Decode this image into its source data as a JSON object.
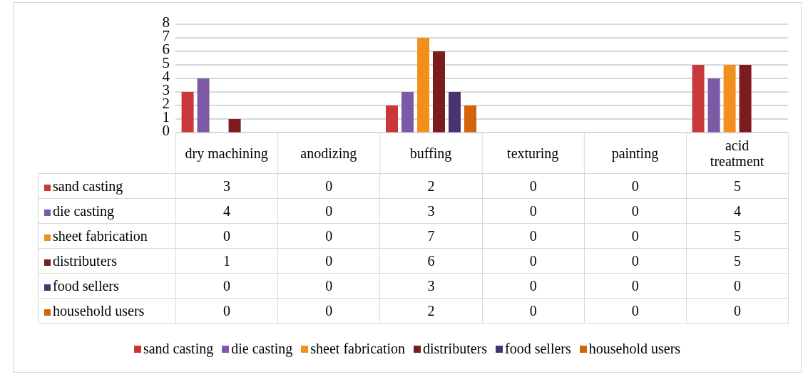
{
  "chart_data": {
    "type": "bar",
    "categories": [
      "dry machining",
      "anodizing",
      "buffing",
      "texturing",
      "painting",
      "acid treatment"
    ],
    "series": [
      {
        "name": "sand casting",
        "color": "#c8383a",
        "values": [
          3,
          0,
          2,
          0,
          0,
          5
        ]
      },
      {
        "name": "die casting",
        "color": "#7d5aa6",
        "values": [
          4,
          0,
          3,
          0,
          0,
          4
        ]
      },
      {
        "name": "sheet fabrication",
        "color": "#f2901e",
        "values": [
          0,
          0,
          7,
          0,
          0,
          5
        ]
      },
      {
        "name": "distributers",
        "color": "#7c1c1e",
        "values": [
          1,
          0,
          6,
          0,
          0,
          5
        ]
      },
      {
        "name": "food sellers",
        "color": "#4a3470",
        "values": [
          0,
          0,
          3,
          0,
          0,
          0
        ]
      },
      {
        "name": "household users",
        "color": "#d2640c",
        "values": [
          0,
          0,
          2,
          0,
          0,
          0
        ]
      }
    ],
    "ylim": [
      0,
      8
    ],
    "yticks": [
      0,
      1,
      2,
      3,
      4,
      5,
      6,
      7,
      8
    ],
    "grid": "y",
    "legend": "bottom",
    "data_labels": true
  }
}
